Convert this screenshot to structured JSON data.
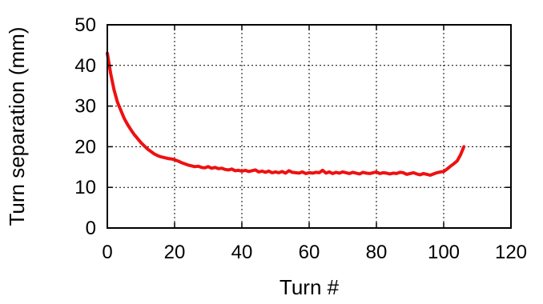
{
  "chart_data": {
    "type": "line",
    "xlabel": "Turn #",
    "ylabel": "Turn separation (mm)",
    "xlim": [
      0,
      120
    ],
    "ylim": [
      0,
      50
    ],
    "xticks": [
      0,
      20,
      40,
      60,
      80,
      100,
      120
    ],
    "yticks": [
      0,
      10,
      20,
      30,
      40,
      50
    ],
    "x_tick_labels": [
      "0",
      "20",
      "40",
      "60",
      "80",
      "100",
      "120"
    ],
    "y_tick_labels": [
      "0",
      "10",
      "20",
      "30",
      "40",
      "50"
    ],
    "grid": true,
    "legend": "none",
    "series": [
      {
        "color": "#ee1111",
        "x": [
          0,
          1,
          2,
          3,
          4,
          5,
          6,
          7,
          8,
          9,
          10,
          11,
          12,
          13,
          14,
          15,
          16,
          17,
          18,
          19,
          20,
          21,
          22,
          23,
          24,
          25,
          26,
          27,
          28,
          29,
          30,
          31,
          32,
          33,
          34,
          35,
          36,
          37,
          38,
          39,
          40,
          41,
          42,
          43,
          44,
          45,
          46,
          47,
          48,
          49,
          50,
          51,
          52,
          53,
          54,
          55,
          56,
          57,
          58,
          59,
          60,
          61,
          62,
          63,
          64,
          65,
          66,
          67,
          68,
          69,
          70,
          71,
          72,
          73,
          74,
          75,
          76,
          77,
          78,
          79,
          80,
          81,
          82,
          83,
          84,
          85,
          86,
          87,
          88,
          89,
          90,
          91,
          92,
          93,
          94,
          95,
          96,
          97,
          98,
          99,
          100,
          101,
          102,
          103,
          104,
          105,
          106
        ],
        "y": [
          43,
          38,
          34,
          31,
          29,
          27,
          25.5,
          24.2,
          23,
          22,
          21,
          20.2,
          19.4,
          18.8,
          18.2,
          17.8,
          17.5,
          17.3,
          17.1,
          17,
          16.8,
          16.5,
          16.1,
          15.8,
          15.5,
          15.3,
          15.1,
          15.2,
          14.9,
          14.8,
          15.1,
          14.7,
          14.9,
          14.6,
          14.7,
          14.4,
          14.3,
          14.5,
          14.1,
          14.2,
          14,
          14.2,
          13.9,
          14.1,
          14.3,
          13.8,
          14,
          13.7,
          14,
          13.6,
          13.8,
          13.6,
          13.9,
          13.5,
          14.1,
          13.7,
          13.6,
          13.5,
          13.8,
          13.4,
          13.6,
          13.5,
          13.7,
          13.6,
          14.2,
          13.5,
          13.8,
          13.4,
          13.7,
          13.5,
          13.8,
          13.6,
          13.4,
          13.7,
          13.5,
          13.3,
          13.7,
          13.5,
          13.4,
          13.6,
          13.8,
          13.4,
          13.6,
          13.5,
          13.3,
          13.5,
          13.4,
          13.7,
          13.6,
          13.2,
          13.4,
          13.6,
          13.3,
          13.1,
          13.4,
          13.2,
          13,
          13.3,
          13.6,
          13.8,
          13.9,
          14.5,
          15.2,
          15.8,
          16.5,
          18,
          20
        ]
      }
    ]
  }
}
